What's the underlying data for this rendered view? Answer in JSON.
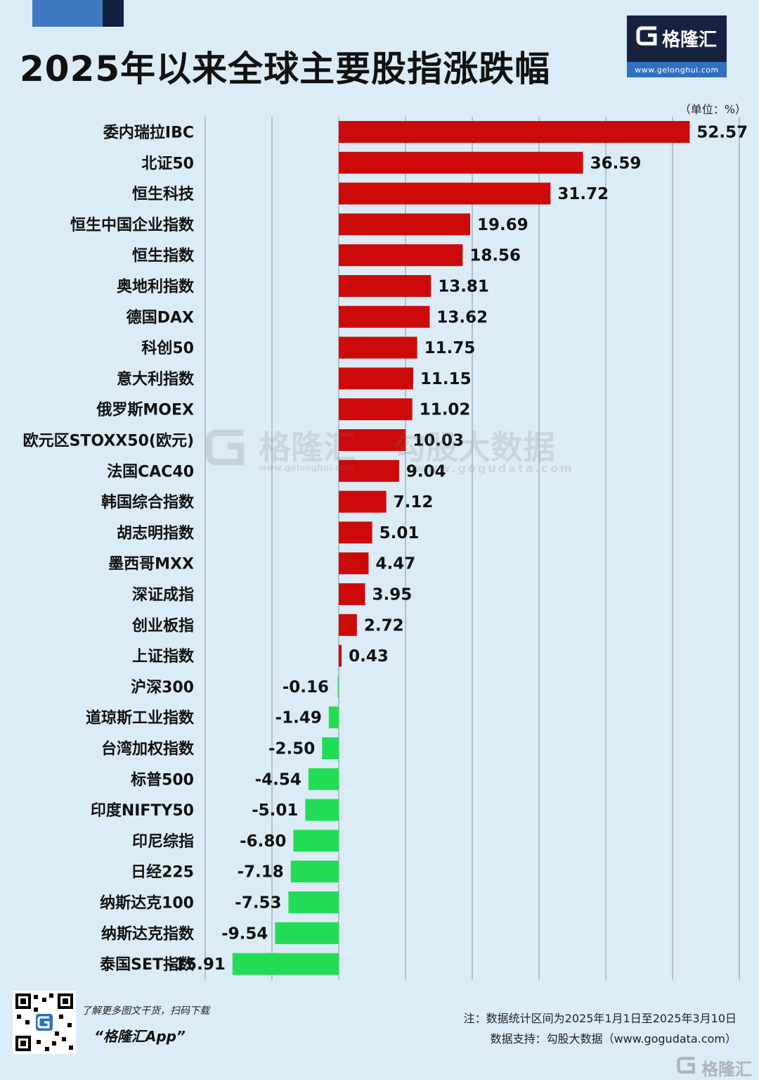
{
  "title": "2025年以来全球主要股指涨跌幅",
  "brand": {
    "name": "格隆汇",
    "url": "www.gelonghui.com"
  },
  "unit_label": "（单位：%）",
  "colors": {
    "positive": "#cc0a0a",
    "negative": "#22dc55",
    "background": "#dcecf7",
    "grid": "#9aa3ad",
    "logo_bg": "#162240"
  },
  "chart_data": {
    "type": "bar",
    "orientation": "horizontal",
    "xlim": [
      -20,
      60
    ],
    "grid": true,
    "categories": [
      "委内瑞拉IBC",
      "北证50",
      "恒生科技",
      "恒生中国企业指数",
      "恒生指数",
      "奥地利指数",
      "德国DAX",
      "科创50",
      "意大利指数",
      "俄罗斯MOEX",
      "欧元区STOXX50(欧元)",
      "法国CAC40",
      "韩国综合指数",
      "胡志明指数",
      "墨西哥MXX",
      "深证成指",
      "创业板指",
      "上证指数",
      "沪深300",
      "道琼斯工业指数",
      "台湾加权指数",
      "标普500",
      "印度NIFTY50",
      "印尼综指",
      "日经225",
      "纳斯达克100",
      "纳斯达克指数",
      "泰国SET指数"
    ],
    "values": [
      52.57,
      36.59,
      31.72,
      19.69,
      18.56,
      13.81,
      13.62,
      11.75,
      11.15,
      11.02,
      10.03,
      9.04,
      7.12,
      5.01,
      4.47,
      3.95,
      2.72,
      0.43,
      -0.16,
      -1.49,
      -2.5,
      -4.54,
      -5.01,
      -6.8,
      -7.18,
      -7.53,
      -9.54,
      -15.91
    ],
    "value_labels": [
      "52.57",
      "36.59",
      "31.72",
      "19.69",
      "18.56",
      "13.81",
      "13.62",
      "11.75",
      "11.15",
      "11.02",
      "10.03",
      "9.04",
      "7.12",
      "5.01",
      "4.47",
      "3.95",
      "2.72",
      "0.43",
      "-0.16",
      "-1.49",
      "-2.50",
      "-4.54",
      "-5.01",
      "-6.80",
      "-7.18",
      "-7.53",
      "-9.54",
      "-15.91"
    ]
  },
  "watermark": {
    "brand": "格隆汇",
    "brand_url": "www.gelonghui.com",
    "partner": "勾股大数据",
    "partner_url": "www.gogudata.com"
  },
  "footer": {
    "qr_caption": "了解更多图文干货，扫码下载",
    "app_name": "“格隆汇App”",
    "note": "注：数据统计区间为2025年1月1日至2025年3月10日",
    "source": "数据支持：勾股大数据（www.gogudata.com）",
    "corner_brand": "格隆汇"
  }
}
